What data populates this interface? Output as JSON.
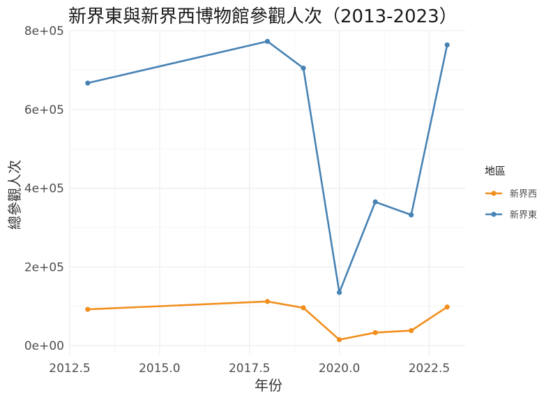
{
  "chart_data": {
    "type": "line",
    "title": "新界東與新界西博物館參觀人次（2013-2023）",
    "xlabel": "年份",
    "ylabel": "總參觀人次",
    "x": [
      2013,
      2018,
      2019,
      2020,
      2021,
      2022,
      2023
    ],
    "series": [
      {
        "name": "新界西",
        "color": "#F28E1C",
        "values": [
          92000,
          112000,
          96000,
          15000,
          33000,
          38000,
          98000
        ]
      },
      {
        "name": "新界東",
        "color": "#4682B4",
        "values": [
          667000,
          773000,
          705000,
          135000,
          365000,
          332000,
          764000
        ]
      }
    ],
    "xlim": [
      2012.5,
      2023.5
    ],
    "ylim": [
      -23000,
      800000
    ],
    "x_ticks": [
      2012.5,
      2015.0,
      2017.5,
      2020.0,
      2022.5
    ],
    "x_tick_labels": [
      "2012.5",
      "2015.0",
      "2017.5",
      "2020.0",
      "2022.5"
    ],
    "y_ticks": [
      0,
      200000,
      400000,
      600000,
      800000
    ],
    "y_tick_labels": [
      "0e+00",
      "2e+05",
      "4e+05",
      "6e+05",
      "8e+05"
    ],
    "grid": true,
    "legend": {
      "title": "地區",
      "position": "right"
    }
  }
}
